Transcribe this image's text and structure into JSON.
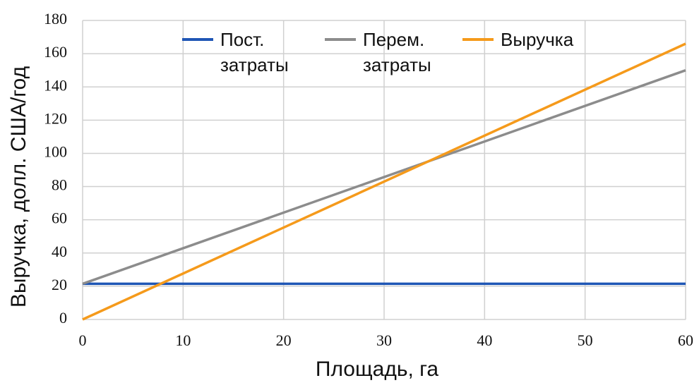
{
  "chart_data": {
    "type": "line",
    "x_label": "Площадь, га",
    "y_label": "Выручка, долл. США/год",
    "x": [
      0,
      60
    ],
    "series": [
      {
        "name": "Пост. затраты",
        "color": "#1f56b5",
        "values": [
          21.5,
          21.5
        ]
      },
      {
        "name": "Перем. затраты",
        "color": "#8c8c8c",
        "values": [
          21.5,
          150
        ]
      },
      {
        "name": "Выручка",
        "color": "#f59a1b",
        "values": [
          0,
          166
        ]
      }
    ],
    "xlim": [
      0,
      60
    ],
    "xticks": [
      0,
      10,
      20,
      30,
      40,
      50,
      60
    ],
    "ylim": [
      0,
      180
    ],
    "yticks": [
      0,
      20,
      40,
      60,
      80,
      100,
      120,
      140,
      160,
      180
    ],
    "grid": true
  }
}
